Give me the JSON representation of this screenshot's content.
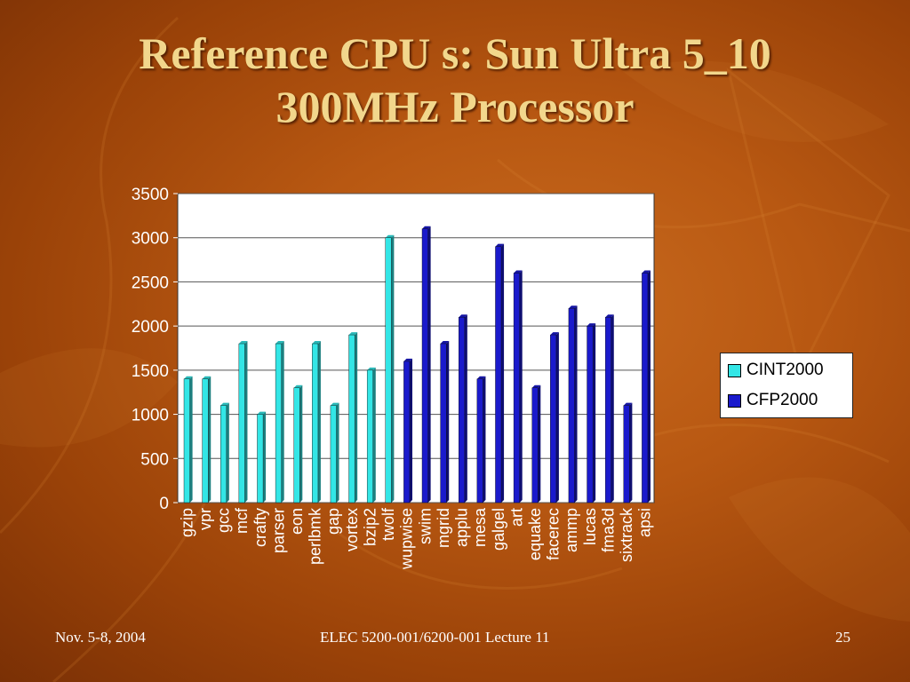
{
  "title": {
    "line1": "Reference CPU s: Sun Ultra 5_10",
    "line2": "300MHz Processor"
  },
  "footer": {
    "date": "Nov. 5-8, 2004",
    "course": "ELEC 5200-001/6200-001 Lecture 11",
    "page": "25"
  },
  "colors": {
    "cint": "#33e6e6",
    "cfp": "#1a1acc",
    "title": "#f2d78c",
    "plot_bg": "#ffffff"
  },
  "chart_data": {
    "type": "bar",
    "title": "",
    "xlabel": "",
    "ylabel": "",
    "ylim": [
      0,
      3500
    ],
    "yticks": [
      0,
      500,
      1000,
      1500,
      2000,
      2500,
      3000,
      3500
    ],
    "grid": true,
    "legend_position": "right",
    "categories": [
      "gzip",
      "vpr",
      "gcc",
      "mcf",
      "crafty",
      "parser",
      "eon",
      "perlbmk",
      "gap",
      "vortex",
      "bzip2",
      "twolf",
      "wupwise",
      "swim",
      "mgrid",
      "applu",
      "mesa",
      "galgel",
      "art",
      "equake",
      "facerec",
      "ammp",
      "lucas",
      "fma3d",
      "sixtrack",
      "apsi"
    ],
    "series": [
      {
        "name": "CINT2000",
        "color": "#33e6e6",
        "values": [
          1400,
          1400,
          1100,
          1800,
          1000,
          1800,
          1300,
          1800,
          1100,
          1900,
          1500,
          3000,
          null,
          null,
          null,
          null,
          null,
          null,
          null,
          null,
          null,
          null,
          null,
          null,
          null,
          null
        ]
      },
      {
        "name": "CFP2000",
        "color": "#1a1acc",
        "values": [
          null,
          null,
          null,
          null,
          null,
          null,
          null,
          null,
          null,
          null,
          null,
          null,
          1600,
          3100,
          1800,
          2100,
          1400,
          2900,
          2600,
          1300,
          1900,
          2200,
          2000,
          2100,
          1100,
          2600
        ]
      }
    ]
  }
}
